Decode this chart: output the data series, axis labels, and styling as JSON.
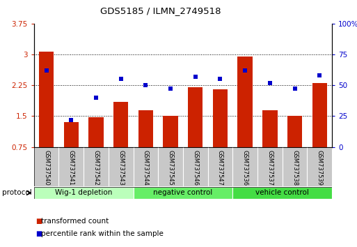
{
  "title": "GDS5185 / ILMN_2749518",
  "samples": [
    "GSM737540",
    "GSM737541",
    "GSM737542",
    "GSM737543",
    "GSM737544",
    "GSM737545",
    "GSM737546",
    "GSM737547",
    "GSM737536",
    "GSM737537",
    "GSM737538",
    "GSM737539"
  ],
  "bar_values": [
    3.07,
    1.35,
    1.48,
    1.85,
    1.65,
    1.5,
    2.2,
    2.15,
    2.95,
    1.65,
    1.5,
    2.3
  ],
  "dot_values": [
    62,
    22,
    40,
    55,
    50,
    47,
    57,
    55,
    62,
    52,
    47,
    58
  ],
  "ylim_left": [
    0.75,
    3.75
  ],
  "ylim_right": [
    0,
    100
  ],
  "yticks_left": [
    0.75,
    1.5,
    2.25,
    3.0,
    3.75
  ],
  "ytick_labels_left": [
    "0.75",
    "1.5",
    "2.25",
    "3",
    "3.75"
  ],
  "yticks_right": [
    0,
    25,
    50,
    75,
    100
  ],
  "ytick_labels_right": [
    "0",
    "25",
    "50",
    "75",
    "100%"
  ],
  "bar_color": "#cc2200",
  "dot_color": "#0000cc",
  "bar_bottom": 0.75,
  "groups": [
    {
      "label": "Wig-1 depletion",
      "start": 0,
      "end": 4,
      "color": "#bbffbb"
    },
    {
      "label": "negative control",
      "start": 4,
      "end": 8,
      "color": "#66ee66"
    },
    {
      "label": "vehicle control",
      "start": 8,
      "end": 12,
      "color": "#44dd44"
    }
  ],
  "protocol_label": "protocol",
  "legend_bar_label": "transformed count",
  "legend_dot_label": "percentile rank within the sample",
  "tick_area_color": "#c8c8c8",
  "fig_width": 5.13,
  "fig_height": 3.54,
  "dpi": 100
}
